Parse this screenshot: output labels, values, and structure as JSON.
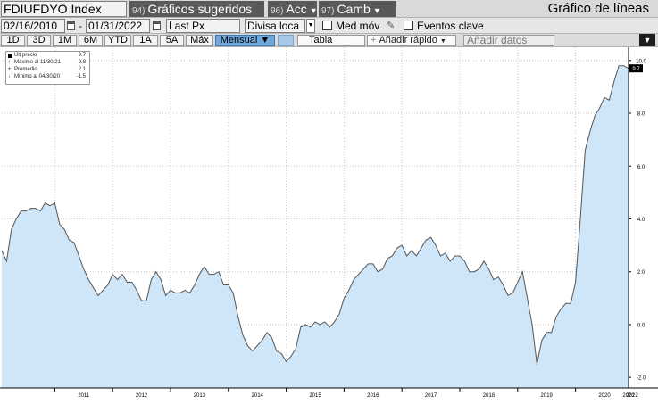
{
  "toolbar": {
    "ticker": "FDIUFDYO Index",
    "suggested_num": "94)",
    "suggested_label": "Gráficos sugeridos",
    "acc_num": "96)",
    "acc_label": "Acc",
    "camb_num": "97)",
    "camb_label": "Camb",
    "chart_type_title": "Gráfico de líneas"
  },
  "controls": {
    "start_date": "02/16/2010",
    "dash": "-",
    "end_date": "01/31/2022",
    "field": "Last Px",
    "currency": "Divisa loca",
    "moving_avg_label": "Med móv",
    "key_events_label": "Eventos clave",
    "periods": [
      "1D",
      "3D",
      "1M",
      "6M",
      "YTD",
      "1A",
      "5A",
      "Máx"
    ],
    "frequency": "Mensual ▼",
    "table_label": "Tabla",
    "quick_add_label": "Añadir rápido",
    "add_data_placeholder": "Añadir datos"
  },
  "legend": {
    "last_label": "Últ precio",
    "last_value": "9.7",
    "max_label": "Máximo al 11/30/21",
    "max_value": "9.8",
    "avg_label": "Promedio",
    "avg_value": "2.1",
    "min_label": "Mínimo al 04/30/20",
    "min_value": "-1.5"
  },
  "colors": {
    "line": "#555555",
    "fill": "#cfe5f8",
    "grid": "#c8c8c8",
    "active_period": "#6fa8dc"
  },
  "chart_data": {
    "type": "area",
    "series_name": "FDIUFDYO Index",
    "frequency": "monthly",
    "x_start": "2010-02",
    "x_end": "2022-01",
    "year_ticks": [
      "2011",
      "2012",
      "2013",
      "2014",
      "2015",
      "2016",
      "2017",
      "2018",
      "2019",
      "2020",
      "2021",
      "2022"
    ],
    "y_ticks": [
      -2.0,
      0.0,
      2.0,
      4.0,
      6.0,
      8.0,
      10.0
    ],
    "ylim": [
      -2.4,
      10.5
    ],
    "last_value_label": "9.7",
    "values": [
      2.8,
      2.4,
      3.6,
      4.0,
      4.3,
      4.3,
      4.4,
      4.4,
      4.3,
      4.6,
      4.5,
      4.6,
      3.8,
      3.6,
      3.2,
      3.1,
      2.6,
      2.1,
      1.7,
      1.4,
      1.1,
      1.3,
      1.5,
      1.9,
      1.7,
      1.9,
      1.6,
      1.6,
      1.3,
      0.9,
      0.9,
      1.7,
      2.0,
      1.7,
      1.1,
      1.3,
      1.2,
      1.2,
      1.3,
      1.2,
      1.5,
      1.9,
      2.2,
      1.9,
      1.9,
      2.0,
      1.5,
      1.5,
      1.2,
      0.3,
      -0.4,
      -0.8,
      -1.0,
      -0.8,
      -0.6,
      -0.3,
      -0.5,
      -1.0,
      -1.1,
      -1.4,
      -1.2,
      -0.9,
      -0.1,
      0.0,
      -0.1,
      0.1,
      0.0,
      0.1,
      -0.1,
      0.1,
      0.4,
      1.0,
      1.3,
      1.7,
      1.9,
      2.1,
      2.3,
      2.3,
      2.0,
      2.1,
      2.5,
      2.6,
      2.9,
      3.0,
      2.6,
      2.8,
      2.6,
      2.9,
      3.2,
      3.3,
      3.0,
      2.6,
      2.7,
      2.4,
      2.6,
      2.6,
      2.4,
      2.0,
      2.0,
      2.1,
      2.4,
      2.1,
      1.7,
      1.8,
      1.5,
      1.1,
      1.2,
      1.6,
      2.0,
      1.0,
      0.0,
      -1.5,
      -0.6,
      -0.3,
      -0.3,
      0.3,
      0.6,
      0.8,
      0.8,
      1.6,
      4.0,
      6.6,
      7.3,
      7.9,
      8.2,
      8.6,
      8.5,
      9.2,
      9.8,
      9.8,
      9.7
    ]
  }
}
